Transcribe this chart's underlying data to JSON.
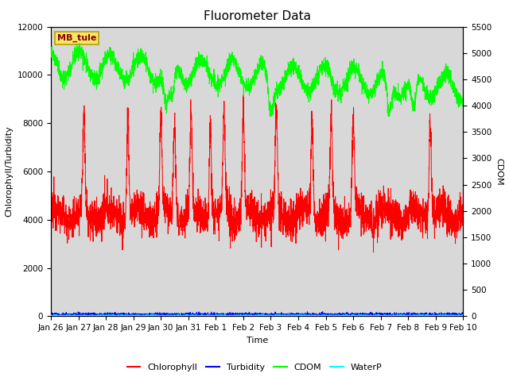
{
  "title": "Fluorometer Data",
  "xlabel": "Time",
  "ylabel_left": "Chlorophyll/Turbidity",
  "ylabel_right": "CDOM",
  "annotation": "MB_tule",
  "background_color": "#d8d8d8",
  "ylim_left": [
    0,
    12000
  ],
  "ylim_right": [
    0,
    5500
  ],
  "yticks_left": [
    0,
    2000,
    4000,
    6000,
    8000,
    10000,
    12000
  ],
  "yticks_right": [
    0,
    500,
    1000,
    1500,
    2000,
    2500,
    3000,
    3500,
    4000,
    4500,
    5000,
    5500
  ],
  "chlorophyll_color": "red",
  "turbidity_color": "blue",
  "cdom_color": "#00ff00",
  "waterp_color": "cyan",
  "title_fontsize": 11,
  "axis_label_fontsize": 8,
  "tick_fontsize": 7.5,
  "legend_fontsize": 8
}
